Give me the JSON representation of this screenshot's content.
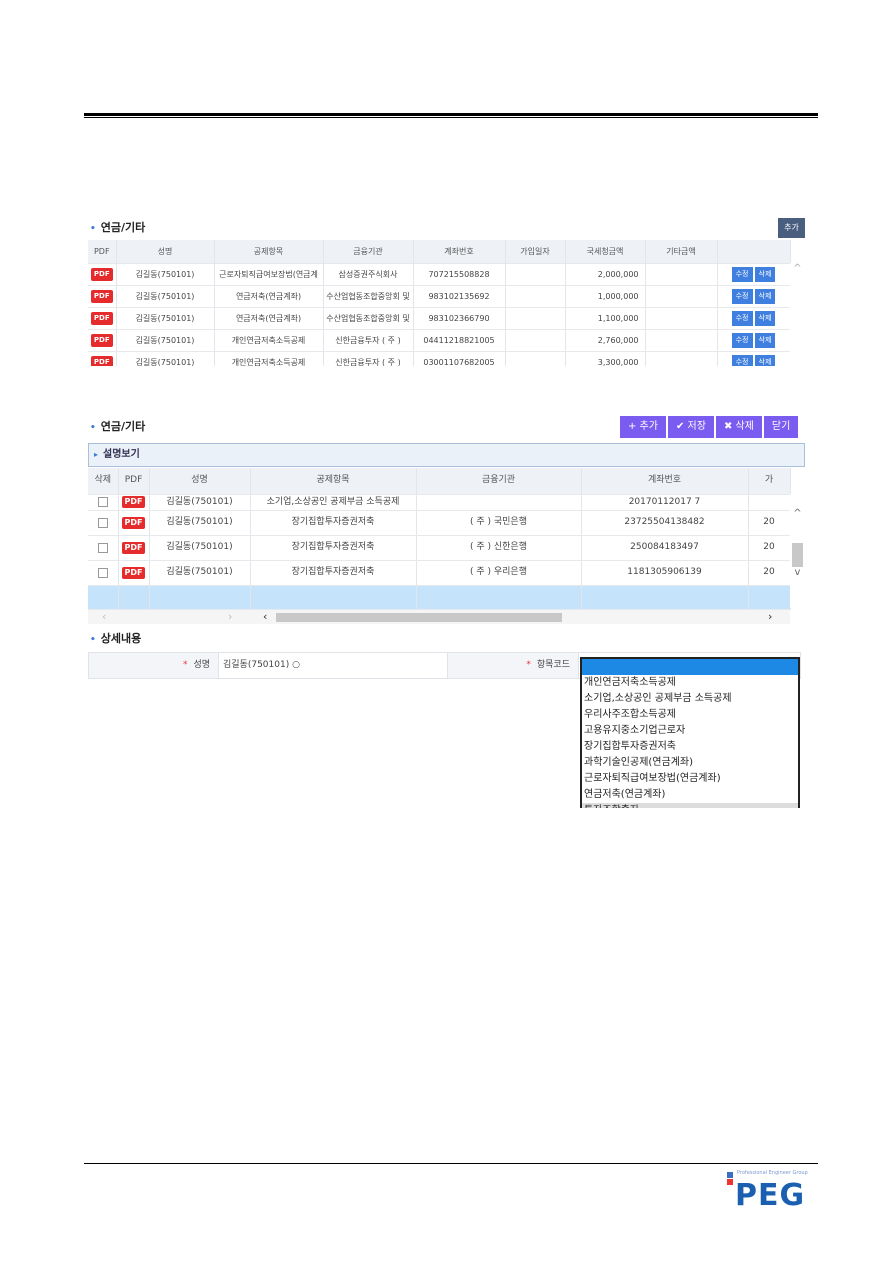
{
  "shot1": {
    "title": "연금/기타",
    "add_label": "추가",
    "headers": [
      "PDF",
      "성명",
      "공제항목",
      "금융기관",
      "계좌번호",
      "가입일자",
      "국세청금액",
      "기타금액",
      ""
    ],
    "rows": [
      [
        "김길동(750101)",
        "근로자퇴직급여보장법(연금계",
        "삼성증권주식회사",
        "707215508828",
        "",
        "2,000,000",
        ""
      ],
      [
        "김길동(750101)",
        "연금저축(연금계좌)",
        "수산업협동조합중앙회 및",
        "983102135692",
        "",
        "1,000,000",
        ""
      ],
      [
        "김길동(750101)",
        "연금저축(연금계좌)",
        "수산업협동조합중앙회 및",
        "983102366790",
        "",
        "1,100,000",
        ""
      ],
      [
        "김길동(750101)",
        "개인연금저축소득공제",
        "신한금융투자 ( 주 )",
        "04411218821005",
        "",
        "2,760,000",
        ""
      ],
      [
        "김길동(750101)",
        "개인연금저축소득공제",
        "신한금융투자 ( 주 )",
        "03001107682005",
        "",
        "3,300,000",
        ""
      ]
    ],
    "pdf_label": "PDF",
    "edit_label": "수정",
    "delete_label": "삭제"
  },
  "shot2": {
    "title": "연금/기타",
    "buttons": [
      "+ 추가",
      "✔ 저장",
      "✖ 삭제",
      "닫기"
    ],
    "desc_label": "설명보기",
    "headers": [
      "삭제",
      "PDF",
      "성명",
      "공제항목",
      "금융기관",
      "계좌번호",
      "가"
    ],
    "rows": [
      [
        "김길동(750101)",
        "소기업,소상공인 공제부금 소득공제",
        "",
        "20170112017 7",
        ""
      ],
      [
        "김길동(750101)",
        "장기집합투자증권저축",
        "( 주 ) 국민은행",
        "23725504138482",
        "20"
      ],
      [
        "김길동(750101)",
        "장기집합투자증권저축",
        "( 주 ) 신한은행",
        "250084183497",
        "20"
      ],
      [
        "김길동(750101)",
        "장기집합투자증권저축",
        "( 주 ) 우리은행",
        "1181305906139",
        "20"
      ]
    ],
    "pdf_label": "PDF",
    "detail_title": "상세내용",
    "form": {
      "name_label": "성명",
      "name_value": "김길동(750101) ○",
      "code_label": "항목코드"
    },
    "dropdown_options": [
      "",
      "개인연금저축소득공제",
      "소기업,소상공인 공제부금 소득공제",
      "우리사주조합소득공제",
      "고용유지중소기업근로자",
      "장기집합투자증권저축",
      "과학기술인공제(연금계좌)",
      "근로자퇴직급여보장법(연금계좌)",
      "연금저축(연금계좌)",
      "투자조합출자"
    ]
  },
  "logo": {
    "tagline": "Professional Engineer Group",
    "text": "PEG"
  },
  "colors": {
    "accent_purple": "#7b5cf0",
    "button_blue": "#3e7fe0",
    "pdf_red": "#e52b2b",
    "selected_row": "#c5e3fb"
  }
}
